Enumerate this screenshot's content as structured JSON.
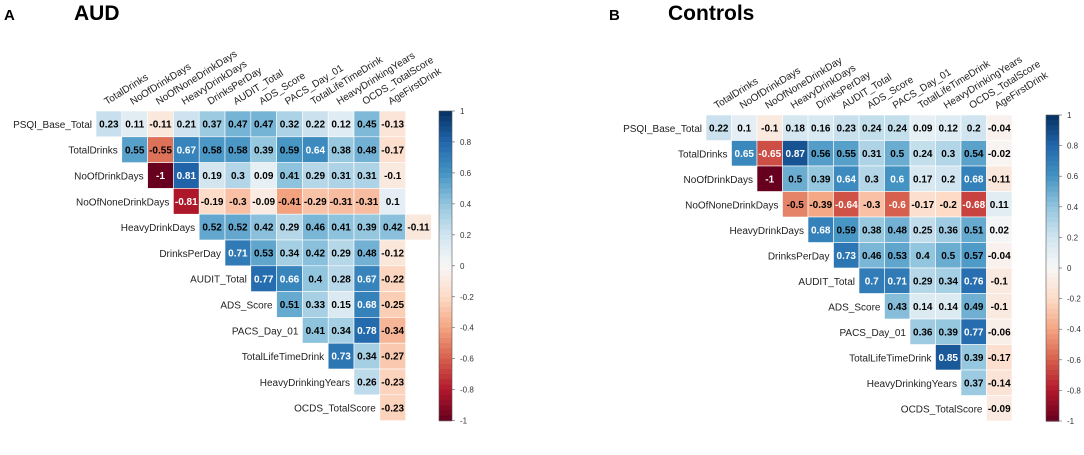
{
  "chart_data": [
    {
      "type": "heatmap",
      "panel_letter": "A",
      "title": "AUD",
      "rows": [
        "PSQI_Base_Total",
        "TotalDrinks",
        "NoOfDrinkDays",
        "NoOfNoneDrinkDays",
        "HeavyDrinkDays",
        "DrinksPerDay",
        "AUDIT_Total",
        "ADS_Score",
        "PACS_Day_01",
        "TotalLifeTimeDrink",
        "HeavyDrinkingYears",
        "OCDS_TotalScore"
      ],
      "columns": [
        "TotalDrinks",
        "NoOfDrinkDays",
        "NoOfNoneDrinkDays",
        "HeavyDrinkDays",
        "DrinksPerDay",
        "AUDIT_Total",
        "ADS_Score",
        "PACS_Day_01",
        "TotalLifeTimeDrink",
        "HeavyDrinkingYears",
        "OCDS_TotalScore",
        "AgeFirstDrink"
      ],
      "values": [
        [
          0.23,
          0.11,
          -0.11,
          0.21,
          0.37,
          0.47,
          0.47,
          0.32,
          0.22,
          0.12,
          0.45,
          -0.13
        ],
        [
          0.55,
          -0.55,
          0.67,
          0.58,
          0.58,
          0.39,
          0.59,
          0.64,
          0.38,
          0.48,
          -0.17
        ],
        [
          -1,
          0.81,
          0.19,
          0.3,
          0.09,
          0.41,
          0.29,
          0.31,
          0.31,
          -0.1
        ],
        [
          -0.81,
          -0.19,
          -0.3,
          -0.09,
          -0.41,
          -0.29,
          -0.31,
          -0.31,
          0.1
        ],
        [
          0.52,
          0.52,
          0.42,
          0.29,
          0.46,
          0.41,
          0.39,
          0.42,
          -0.11
        ],
        [
          0.71,
          0.53,
          0.34,
          0.42,
          0.29,
          0.48,
          -0.12
        ],
        [
          0.77,
          0.66,
          0.4,
          0.28,
          0.67,
          -0.22
        ],
        [
          0.51,
          0.33,
          0.15,
          0.68,
          -0.25
        ],
        [
          0.41,
          0.34,
          0.78,
          -0.34
        ],
        [
          0.73,
          0.34,
          -0.27
        ],
        [
          0.26,
          -0.23
        ],
        [
          -0.23
        ]
      ],
      "colorbar_ticks": [
        "1",
        "0.8",
        "0.6",
        "0.4",
        "0.2",
        "0",
        "-0.2",
        "-0.4",
        "-0.6",
        "-0.8",
        "-1"
      ],
      "color_scale": {
        "negative": "#67001F",
        "zero": "#F7F7F7",
        "positive": "#053061"
      }
    },
    {
      "type": "heatmap",
      "panel_letter": "B",
      "title": "Controls",
      "rows": [
        "PSQI_Base_Total",
        "TotalDrinks",
        "NoOfDrinkDays",
        "NoOfNoneDrinkDays",
        "HeavyDrinkDays",
        "DrinksPerDay",
        "AUDIT_Total",
        "ADS_Score",
        "PACS_Day_01",
        "TotalLifeTimeDrink",
        "HeavyDrinkingYears",
        "OCDS_TotalScore"
      ],
      "columns": [
        "TotalDrinks",
        "NoOfDrinkDays",
        "NoOfNoneDrinkDay",
        "HeavyDrinkDays",
        "DrinksPerDay",
        "AUDIT_Total",
        "ADS_Score",
        "PACS_Day_01",
        "TotalLifeTimeDrink",
        "HeavyDrinkingYears",
        "OCDS_TotalScore",
        "AgeFirstDrink"
      ],
      "values": [
        [
          0.22,
          0.1,
          -0.1,
          0.18,
          0.16,
          0.23,
          0.24,
          0.24,
          0.09,
          0.12,
          0.2,
          -0.04
        ],
        [
          0.65,
          -0.65,
          0.87,
          0.56,
          0.55,
          0.31,
          0.5,
          0.24,
          0.3,
          0.54,
          -0.02
        ],
        [
          -1,
          0.5,
          0.39,
          0.64,
          0.3,
          0.6,
          0.17,
          0.2,
          0.68,
          -0.11
        ],
        [
          -0.5,
          -0.39,
          -0.64,
          -0.3,
          -0.6,
          -0.17,
          -0.2,
          -0.68,
          0.11
        ],
        [
          0.68,
          0.59,
          0.38,
          0.48,
          0.25,
          0.36,
          0.51,
          0.02
        ],
        [
          0.73,
          0.46,
          0.53,
          0.4,
          0.5,
          0.57,
          -0.04
        ],
        [
          0.7,
          0.71,
          0.29,
          0.34,
          0.76,
          -0.1
        ],
        [
          0.43,
          0.14,
          0.14,
          0.49,
          -0.1
        ],
        [
          0.36,
          0.39,
          0.77,
          -0.06
        ],
        [
          0.85,
          0.39,
          -0.17
        ],
        [
          0.37,
          -0.14
        ],
        [
          -0.09
        ]
      ],
      "colorbar_ticks": [
        "1",
        "0.8",
        "0.6",
        "0.4",
        "0.2",
        "0",
        "-0.2",
        "-0.4",
        "-0.6",
        "-0.8",
        "-1"
      ],
      "color_scale": {
        "negative": "#67001F",
        "zero": "#F7F7F7",
        "positive": "#053061"
      }
    }
  ]
}
